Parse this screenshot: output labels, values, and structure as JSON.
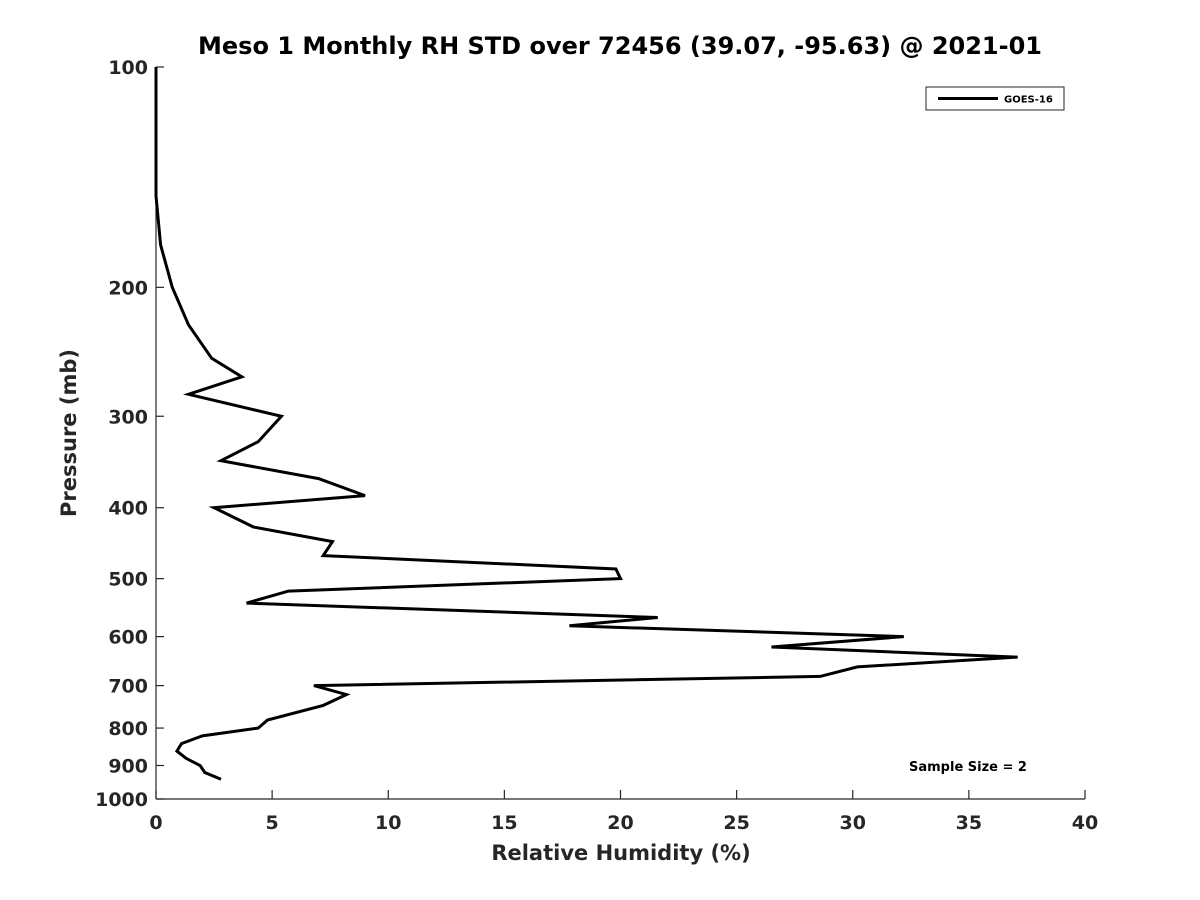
{
  "chart_data": {
    "type": "line",
    "title": "Meso 1 Monthly RH STD over 72456 (39.07, -95.63) @ 2021-01",
    "xlabel": "Relative Humidity (%)",
    "ylabel": "Pressure (mb)",
    "xlim": [
      0,
      40
    ],
    "ylim": [
      100,
      1000
    ],
    "yscale": "log",
    "y_reversed": true,
    "xticks": [
      0,
      5,
      10,
      15,
      20,
      25,
      30,
      35,
      40
    ],
    "xtick_labels": [
      "0",
      "5",
      "10",
      "15",
      "20",
      "25",
      "30",
      "35",
      "40"
    ],
    "yticks": [
      100,
      200,
      300,
      400,
      500,
      600,
      700,
      800,
      900,
      1000
    ],
    "ytick_labels": [
      "100",
      "200",
      "300",
      "400",
      "500",
      "600",
      "700",
      "800",
      "900",
      "1000"
    ],
    "grid": false,
    "legend_position": "top-right",
    "annotation": "Sample Size = 2",
    "series": [
      {
        "name": "GOES-16",
        "color": "#000000",
        "points": [
          [
            0.0,
            100
          ],
          [
            0.0,
            125
          ],
          [
            0.0,
            150
          ],
          [
            0.2,
            175
          ],
          [
            0.7,
            200
          ],
          [
            1.4,
            225
          ],
          [
            2.4,
            250
          ],
          [
            3.7,
            265
          ],
          [
            1.4,
            280
          ],
          [
            5.4,
            300
          ],
          [
            4.4,
            325
          ],
          [
            2.8,
            345
          ],
          [
            7.0,
            365
          ],
          [
            9.0,
            385
          ],
          [
            2.5,
            400
          ],
          [
            4.2,
            425
          ],
          [
            7.6,
            445
          ],
          [
            7.2,
            465
          ],
          [
            19.8,
            485
          ],
          [
            20.0,
            500
          ],
          [
            5.7,
            520
          ],
          [
            3.9,
            540
          ],
          [
            21.6,
            565
          ],
          [
            17.8,
            580
          ],
          [
            32.2,
            600
          ],
          [
            26.5,
            620
          ],
          [
            37.1,
            640
          ],
          [
            30.2,
            660
          ],
          [
            28.6,
            680
          ],
          [
            6.8,
            700
          ],
          [
            8.2,
            720
          ],
          [
            7.2,
            745
          ],
          [
            4.8,
            780
          ],
          [
            4.4,
            800
          ],
          [
            2.0,
            820
          ],
          [
            1.1,
            840
          ],
          [
            0.9,
            860
          ],
          [
            1.3,
            880
          ],
          [
            1.9,
            900
          ],
          [
            2.1,
            920
          ],
          [
            2.8,
            940
          ]
        ]
      }
    ]
  }
}
